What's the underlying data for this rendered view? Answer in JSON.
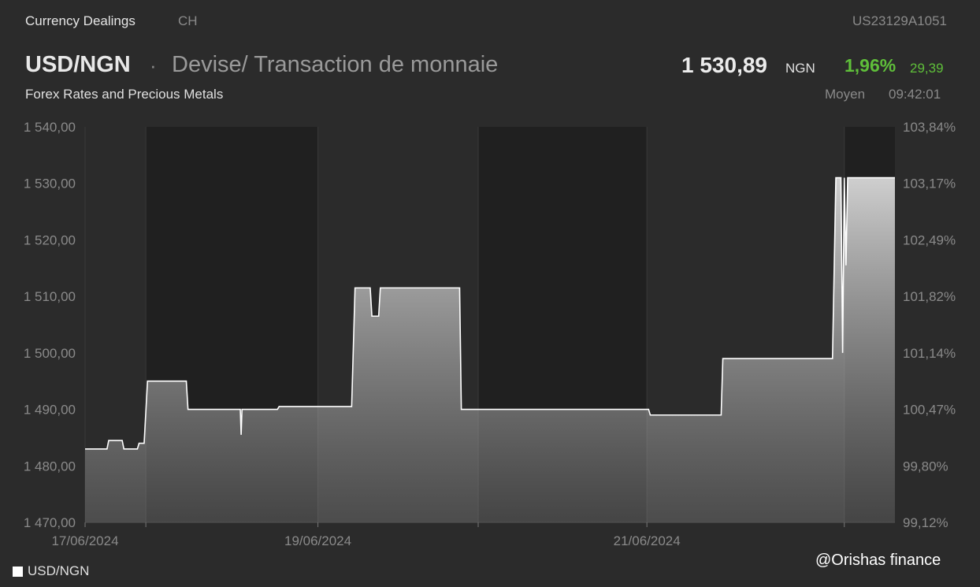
{
  "header": {
    "source": "Currency Dealings",
    "market": "CH",
    "isin": "US23129A1051",
    "pair": "USD/NGN",
    "separator": "·",
    "description": "Devise/ Transaction de monnaie",
    "subtitle": "Forex Rates and Precious Metals",
    "price": "1 530,89",
    "currency": "NGN",
    "change_pct": "1,96%",
    "change_abs": "29,39",
    "quote_type": "Moyen",
    "quote_time": "09:42:01"
  },
  "watermark": "@Orishas finance",
  "colors": {
    "background": "#2b2b2b",
    "shade": "#202020",
    "positive": "#5fbf3a",
    "line": "#ffffff"
  },
  "chart_data": {
    "type": "area",
    "x_range": [
      0,
      4.8
    ],
    "ylim": [
      1470,
      1540
    ],
    "y_ticks": [
      "1 470,00",
      "1 480,00",
      "1 490,00",
      "1 500,00",
      "1 510,00",
      "1 520,00",
      "1 530,00",
      "1 540,00"
    ],
    "y2_ticks": [
      "99,12%",
      "99,80%",
      "100,47%",
      "101,14%",
      "101,82%",
      "102,49%",
      "103,17%",
      "103,84%"
    ],
    "x_ticks": [
      {
        "x": 0,
        "label": "17/06/2024",
        "line": true
      },
      {
        "x": 0.36,
        "label": "",
        "line": true
      },
      {
        "x": 1.38,
        "label": "19/06/2024",
        "line": true
      },
      {
        "x": 2.33,
        "label": "",
        "line": true
      },
      {
        "x": 3.33,
        "label": "21/06/2024",
        "line": true
      },
      {
        "x": 4.5,
        "label": "",
        "line": true
      }
    ],
    "closed_bands": [
      [
        0.36,
        1.38
      ],
      [
        2.33,
        3.33
      ],
      [
        4.5,
        4.8
      ]
    ],
    "series": [
      {
        "name": "USD/NGN",
        "points": [
          [
            0,
            1483
          ],
          [
            0.13,
            1483
          ],
          [
            0.14,
            1484.5
          ],
          [
            0.22,
            1484.5
          ],
          [
            0.23,
            1483
          ],
          [
            0.31,
            1483
          ],
          [
            0.32,
            1484
          ],
          [
            0.35,
            1484
          ],
          [
            0.37,
            1495
          ],
          [
            0.6,
            1495
          ],
          [
            0.61,
            1490
          ],
          [
            0.92,
            1490
          ],
          [
            0.925,
            1485.5
          ],
          [
            0.93,
            1490
          ],
          [
            1.14,
            1490
          ],
          [
            1.15,
            1490.5
          ],
          [
            1.58,
            1490.5
          ],
          [
            1.6,
            1511.5
          ],
          [
            1.69,
            1511.5
          ],
          [
            1.7,
            1506.5
          ],
          [
            1.74,
            1506.5
          ],
          [
            1.75,
            1511.5
          ],
          [
            2.22,
            1511.5
          ],
          [
            2.23,
            1490
          ],
          [
            3.34,
            1490
          ],
          [
            3.35,
            1489
          ],
          [
            3.77,
            1489
          ],
          [
            3.78,
            1499
          ],
          [
            4.43,
            1499
          ],
          [
            4.45,
            1531
          ],
          [
            4.48,
            1531
          ],
          [
            4.49,
            1500
          ],
          [
            4.5,
            1531
          ],
          [
            4.51,
            1515.5
          ],
          [
            4.52,
            1531
          ],
          [
            4.8,
            1531
          ]
        ]
      }
    ]
  }
}
